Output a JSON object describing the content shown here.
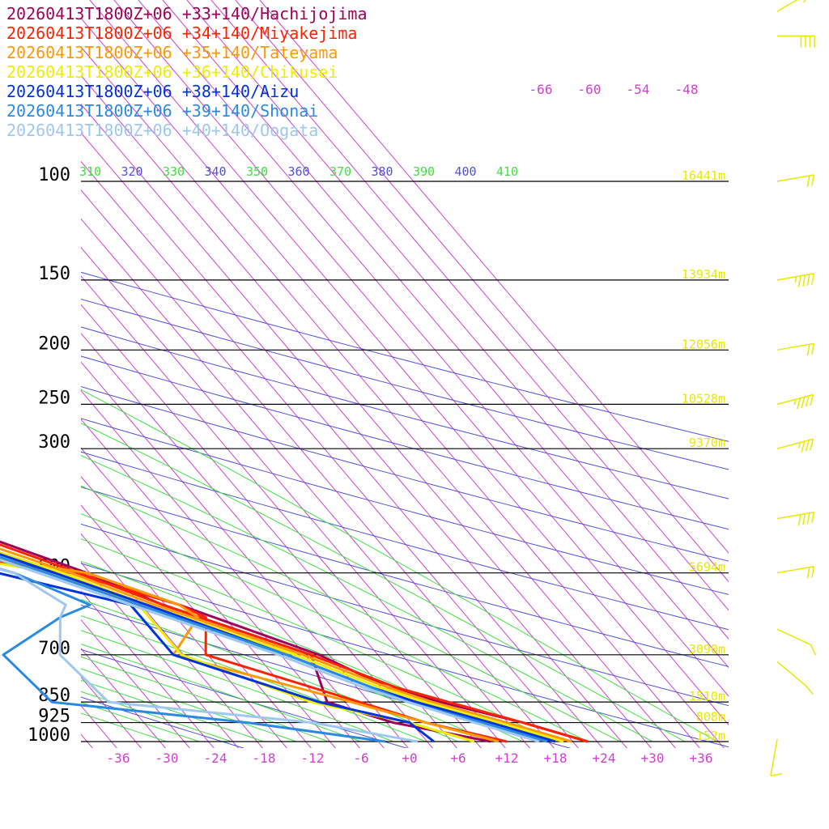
{
  "chart_data": {
    "type": "line",
    "legend": [
      {
        "label": "20260413T1800Z+06 +33+140/Hachijojima",
        "color": "#a0005a"
      },
      {
        "label": "20260413T1800Z+06 +34+140/Miyakejima",
        "color": "#ff2200"
      },
      {
        "label": "20260413T1800Z+06 +35+140/Tateyama",
        "color": "#ff9900"
      },
      {
        "label": "20260413T1800Z+06 +36+140/Chikusei",
        "color": "#eeee00"
      },
      {
        "label": "20260413T1800Z+06 +38+140/Aizu",
        "color": "#0033dd"
      },
      {
        "label": "20260413T1800Z+06 +39+140/Shonai",
        "color": "#2a8ae0"
      },
      {
        "label": "20260413T1800Z+06 +40+140/Oogata",
        "color": "#9ec8f2"
      }
    ],
    "pressure_levels": [
      "100",
      "150",
      "200",
      "250",
      "300",
      "500",
      "700",
      "850",
      "925",
      "1000"
    ],
    "pressure_values": [
      100,
      150,
      200,
      250,
      300,
      500,
      700,
      850,
      925,
      1000
    ],
    "height_labels": [
      {
        "p": 100,
        "text": "16441m"
      },
      {
        "p": 150,
        "text": "13934m"
      },
      {
        "p": 200,
        "text": "12056m"
      },
      {
        "p": 250,
        "text": "10528m"
      },
      {
        "p": 300,
        "text": "9370m"
      },
      {
        "p": 500,
        "text": "5694m"
      },
      {
        "p": 700,
        "text": "3090m"
      },
      {
        "p": 850,
        "text": "1510m"
      },
      {
        "p": 925,
        "text": "808m"
      },
      {
        "p": 1000,
        "text": "152m"
      }
    ],
    "x_ticks": [
      "-36",
      "-30",
      "-24",
      "-18",
      "-12",
      "-6",
      "+0",
      "+6",
      "+12",
      "+18",
      "+24",
      "+30",
      "+36"
    ],
    "x_tick_values": [
      -36,
      -30,
      -24,
      -18,
      -12,
      -6,
      0,
      6,
      12,
      18,
      24,
      30,
      36
    ],
    "upper_temp_labels": [
      "-66",
      "-60",
      "-54",
      "-48"
    ],
    "theta_labels": [
      "310",
      "320",
      "330",
      "340",
      "350",
      "360",
      "370",
      "380",
      "390",
      "400",
      "410"
    ],
    "series": [
      {
        "name": "20260413T1800Z+06 +33+140/Hachijojima",
        "temp": [
          [
            10,
            -46
          ],
          [
            20,
            -57
          ],
          [
            45,
            -66
          ],
          [
            70,
            -70
          ],
          [
            100,
            -71
          ],
          [
            130,
            -71
          ],
          [
            150,
            -66
          ],
          [
            175,
            -57
          ],
          [
            200,
            -52
          ],
          [
            225,
            -50
          ],
          [
            240,
            -51
          ],
          [
            260,
            -52
          ],
          [
            300,
            -48
          ],
          [
            400,
            -35
          ],
          [
            500,
            -22
          ],
          [
            570,
            -14
          ],
          [
            700,
            -2
          ],
          [
            800,
            3
          ],
          [
            850,
            8
          ],
          [
            925,
            16
          ],
          [
            1000,
            22
          ]
        ],
        "dew": [
          [
            200,
            -53
          ],
          [
            300,
            -56
          ],
          [
            400,
            -62
          ],
          [
            500,
            -22
          ],
          [
            570,
            -16
          ],
          [
            700,
            -3
          ],
          [
            850,
            -6
          ],
          [
            925,
            0
          ],
          [
            1000,
            10
          ]
        ]
      },
      {
        "name": "20260413T1800Z+06 +34+140/Miyakejima",
        "temp": [
          [
            10,
            -46
          ],
          [
            20,
            -56
          ],
          [
            45,
            -64
          ],
          [
            70,
            -68
          ],
          [
            100,
            -70
          ],
          [
            130,
            -69
          ],
          [
            150,
            -65
          ],
          [
            175,
            -56
          ],
          [
            200,
            -52
          ],
          [
            225,
            -52
          ],
          [
            250,
            -54
          ],
          [
            270,
            -54
          ],
          [
            300,
            -50
          ],
          [
            400,
            -36
          ],
          [
            500,
            -23
          ],
          [
            570,
            -16
          ],
          [
            700,
            -3
          ],
          [
            800,
            4
          ],
          [
            850,
            9
          ],
          [
            925,
            16
          ],
          [
            1000,
            22
          ]
        ],
        "dew": [
          [
            200,
            -53
          ],
          [
            300,
            -52
          ],
          [
            400,
            -62
          ],
          [
            500,
            -24
          ],
          [
            570,
            -14
          ],
          [
            600,
            -12
          ],
          [
            700,
            -16
          ],
          [
            850,
            -2
          ],
          [
            925,
            4
          ],
          [
            1000,
            12
          ]
        ]
      },
      {
        "name": "20260413T1800Z+06 +35+140/Tateyama",
        "temp": [
          [
            10,
            -46
          ],
          [
            20,
            -54
          ],
          [
            45,
            -62
          ],
          [
            70,
            -66
          ],
          [
            100,
            -68
          ],
          [
            130,
            -67
          ],
          [
            150,
            -62
          ],
          [
            175,
            -56
          ],
          [
            200,
            -52
          ],
          [
            225,
            -54
          ],
          [
            250,
            -56
          ],
          [
            270,
            -55
          ],
          [
            300,
            -51
          ],
          [
            400,
            -38
          ],
          [
            500,
            -24
          ],
          [
            570,
            -17
          ],
          [
            700,
            -4
          ],
          [
            800,
            3
          ],
          [
            850,
            7
          ],
          [
            925,
            14
          ],
          [
            1000,
            20
          ]
        ],
        "dew": [
          [
            200,
            -52
          ],
          [
            300,
            -54
          ],
          [
            400,
            -60
          ],
          [
            500,
            -22
          ],
          [
            570,
            -14
          ],
          [
            600,
            -13
          ],
          [
            700,
            -20
          ],
          [
            850,
            -3
          ],
          [
            925,
            4
          ],
          [
            1000,
            11
          ]
        ]
      },
      {
        "name": "20260413T1800Z+06 +36+140/Chikusei",
        "temp": [
          [
            10,
            -46
          ],
          [
            20,
            -53
          ],
          [
            45,
            -61
          ],
          [
            70,
            -64
          ],
          [
            100,
            -66
          ],
          [
            130,
            -66
          ],
          [
            150,
            -62
          ],
          [
            175,
            -57
          ],
          [
            200,
            -54
          ],
          [
            225,
            -57
          ],
          [
            250,
            -58
          ],
          [
            270,
            -57
          ],
          [
            300,
            -53
          ],
          [
            400,
            -40
          ],
          [
            500,
            -25
          ],
          [
            570,
            -18
          ],
          [
            700,
            -5
          ],
          [
            800,
            2
          ],
          [
            850,
            6
          ],
          [
            925,
            13
          ],
          [
            1000,
            19
          ]
        ],
        "dew": [
          [
            200,
            -54
          ],
          [
            300,
            -60
          ],
          [
            400,
            -60
          ],
          [
            500,
            -26
          ],
          [
            570,
            -19
          ],
          [
            600,
            -19
          ],
          [
            700,
            -19
          ],
          [
            850,
            -8
          ],
          [
            925,
            2
          ],
          [
            1000,
            8
          ]
        ]
      },
      {
        "name": "20260413T1800Z+06 +38+140/Aizu",
        "temp": [
          [
            10,
            -46
          ],
          [
            20,
            -52
          ],
          [
            45,
            -59
          ],
          [
            70,
            -63
          ],
          [
            100,
            -64
          ],
          [
            130,
            -65
          ],
          [
            150,
            -61
          ],
          [
            175,
            -57
          ],
          [
            200,
            -55
          ],
          [
            225,
            -59
          ],
          [
            250,
            -60
          ],
          [
            270,
            -59
          ],
          [
            300,
            -54
          ],
          [
            400,
            -40
          ],
          [
            500,
            -26
          ],
          [
            570,
            -18
          ],
          [
            700,
            -6
          ],
          [
            800,
            1
          ],
          [
            850,
            5
          ],
          [
            925,
            12
          ],
          [
            1000,
            18
          ]
        ],
        "dew": [
          [
            200,
            -55
          ],
          [
            300,
            -64
          ],
          [
            400,
            -52
          ],
          [
            500,
            -33
          ],
          [
            570,
            -20
          ],
          [
            600,
            -20
          ],
          [
            700,
            -20
          ],
          [
            850,
            -7
          ],
          [
            925,
            2
          ],
          [
            1000,
            3
          ]
        ]
      },
      {
        "name": "20260413T1800Z+06 +39+140/Shonai",
        "temp": [
          [
            10,
            -46
          ],
          [
            20,
            -52
          ],
          [
            45,
            -58
          ],
          [
            70,
            -62
          ],
          [
            100,
            -63
          ],
          [
            130,
            -63
          ],
          [
            150,
            -61
          ],
          [
            175,
            -57
          ],
          [
            200,
            -55
          ],
          [
            225,
            -60
          ],
          [
            250,
            -62
          ],
          [
            270,
            -61
          ],
          [
            300,
            -56
          ],
          [
            400,
            -41
          ],
          [
            500,
            -27
          ],
          [
            570,
            -19
          ],
          [
            700,
            -6
          ],
          [
            800,
            1
          ],
          [
            850,
            4
          ],
          [
            925,
            11
          ],
          [
            1000,
            17
          ]
        ],
        "dew": [
          [
            200,
            -57
          ],
          [
            300,
            -63
          ],
          [
            400,
            -49
          ],
          [
            500,
            -31
          ],
          [
            570,
            -25
          ],
          [
            600,
            -30
          ],
          [
            700,
            -41
          ],
          [
            850,
            -40
          ],
          [
            925,
            -18
          ],
          [
            1000,
            -3
          ]
        ]
      },
      {
        "name": "20260413T1800Z+06 +40+140/Oogata",
        "temp": [
          [
            10,
            -46
          ],
          [
            20,
            -51
          ],
          [
            45,
            -56
          ],
          [
            70,
            -60
          ],
          [
            100,
            -61
          ],
          [
            130,
            -62
          ],
          [
            150,
            -60
          ],
          [
            175,
            -57
          ],
          [
            200,
            -56
          ],
          [
            225,
            -61
          ],
          [
            250,
            -62
          ],
          [
            270,
            -61
          ],
          [
            300,
            -57
          ],
          [
            400,
            -42
          ],
          [
            500,
            -28
          ],
          [
            570,
            -20
          ],
          [
            700,
            -7
          ],
          [
            800,
            0
          ],
          [
            850,
            4
          ],
          [
            925,
            10
          ],
          [
            1000,
            16
          ]
        ],
        "dew": [
          [
            200,
            -58
          ],
          [
            300,
            -60
          ],
          [
            400,
            -52
          ],
          [
            500,
            -31
          ],
          [
            570,
            -28
          ],
          [
            600,
            -30
          ],
          [
            700,
            -34
          ],
          [
            850,
            -33
          ],
          [
            925,
            -10
          ],
          [
            1000,
            1
          ]
        ]
      }
    ],
    "wind_barbs": [
      {
        "p": 8,
        "spd": 15,
        "dir": 300
      },
      {
        "p": 55,
        "spd": 40,
        "dir": 270
      },
      {
        "p": 100,
        "spd": 20,
        "dir": 280
      },
      {
        "p": 150,
        "spd": 45,
        "dir": 280
      },
      {
        "p": 200,
        "spd": 20,
        "dir": 280
      },
      {
        "p": 250,
        "spd": 45,
        "dir": 285
      },
      {
        "p": 300,
        "spd": 35,
        "dir": 285
      },
      {
        "p": 400,
        "spd": 40,
        "dir": 280
      },
      {
        "p": 500,
        "spd": 20,
        "dir": 280
      },
      {
        "p": 630,
        "spd": 10,
        "dir": 245
      },
      {
        "p": 720,
        "spd": 10,
        "dir": 230
      },
      {
        "p": 990,
        "spd": 10,
        "dir": 170
      }
    ]
  }
}
